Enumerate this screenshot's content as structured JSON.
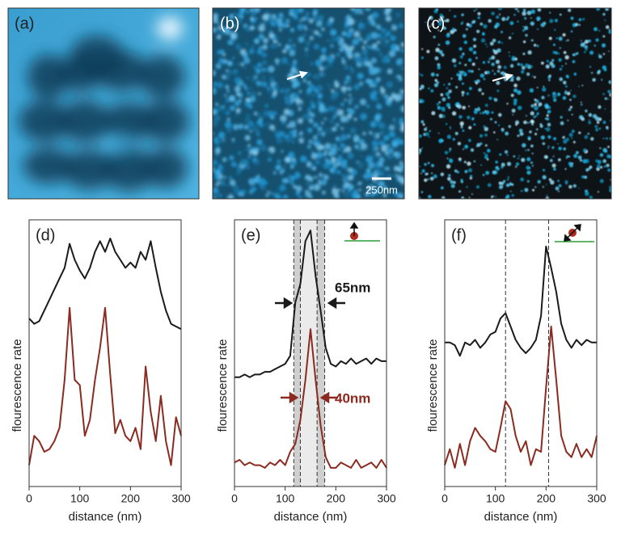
{
  "images": [
    {
      "label": "(a)"
    },
    {
      "label": "(b)",
      "scale_bar": "250nm"
    },
    {
      "label": "(c)"
    }
  ],
  "chart_data": [
    {
      "type": "line",
      "label": "(d)",
      "xlabel": "distance (nm)",
      "ylabel": "flourescence rate",
      "xlim": [
        0,
        300
      ],
      "xticks": [
        0,
        100,
        200,
        300
      ],
      "ylim": [
        0,
        100
      ],
      "x": [
        0,
        10,
        20,
        30,
        40,
        50,
        60,
        70,
        80,
        90,
        100,
        110,
        120,
        130,
        140,
        150,
        160,
        170,
        180,
        190,
        200,
        210,
        220,
        230,
        240,
        250,
        260,
        270,
        280,
        290,
        300
      ],
      "series": [
        {
          "color": "#1a1a1a",
          "values": [
            63,
            61,
            62,
            66,
            70,
            74,
            78,
            82,
            91,
            85,
            81,
            78,
            82,
            88,
            92,
            88,
            93,
            88,
            85,
            82,
            84,
            82,
            88,
            85,
            92,
            82,
            73,
            66,
            61,
            60,
            59
          ]
        },
        {
          "color": "#8b2a20",
          "values": [
            8,
            19,
            17,
            13,
            14,
            17,
            22,
            40,
            67,
            40,
            38,
            19,
            25,
            40,
            52,
            67,
            42,
            20,
            25,
            19,
            17,
            22,
            14,
            45,
            28,
            17,
            34,
            17,
            8,
            26,
            19
          ]
        }
      ]
    },
    {
      "type": "line",
      "label": "(e)",
      "xlabel": "distance (nm)",
      "ylabel": "flourescence rate",
      "xlim": [
        0,
        300
      ],
      "xticks": [
        0,
        100,
        200,
        300
      ],
      "ylim": [
        0,
        100
      ],
      "x": [
        0,
        10,
        20,
        30,
        40,
        50,
        60,
        70,
        80,
        90,
        100,
        110,
        120,
        130,
        140,
        150,
        160,
        170,
        180,
        190,
        200,
        210,
        220,
        230,
        240,
        250,
        260,
        270,
        280,
        290,
        300
      ],
      "series": [
        {
          "color": "#1a1a1a",
          "values": [
            41,
            41,
            42,
            41,
            42,
            42,
            43,
            43,
            44,
            45,
            46,
            49,
            69,
            76,
            92,
            96,
            79,
            66,
            52,
            46,
            45,
            47,
            46,
            48,
            46,
            47,
            48,
            46,
            48,
            47,
            47
          ]
        },
        {
          "color": "#8b2a20",
          "values": [
            9,
            10,
            8,
            9,
            8,
            8,
            7,
            9,
            8,
            10,
            8,
            13,
            16,
            25,
            40,
            59,
            40,
            23,
            11,
            7,
            7,
            9,
            8,
            7,
            10,
            7,
            8,
            9,
            7,
            10,
            7
          ]
        }
      ],
      "vlines": [
        117,
        130,
        163,
        178
      ],
      "annotations": [
        {
          "text": "65nm",
          "color": "#1a1a1a"
        },
        {
          "text": "40nm",
          "color": "#8b2a20"
        }
      ]
    },
    {
      "type": "line",
      "label": "(f)",
      "xlabel": "distance (nm)",
      "ylabel": "flourescence rate",
      "xlim": [
        0,
        300
      ],
      "xticks": [
        0,
        100,
        200,
        300
      ],
      "ylim": [
        0,
        100
      ],
      "x": [
        0,
        10,
        20,
        30,
        40,
        50,
        60,
        70,
        80,
        90,
        100,
        110,
        120,
        130,
        140,
        150,
        160,
        170,
        180,
        190,
        200,
        210,
        220,
        230,
        240,
        250,
        260,
        270,
        280,
        290,
        300
      ],
      "series": [
        {
          "color": "#1a1a1a",
          "values": [
            54,
            54,
            53,
            49,
            54,
            53,
            55,
            52,
            54,
            57,
            58,
            63,
            65,
            60,
            55,
            52,
            50,
            52,
            55,
            64,
            90,
            82,
            73,
            61,
            55,
            52,
            55,
            53,
            55,
            54,
            54
          ]
        },
        {
          "color": "#8b2a20",
          "values": [
            8,
            14,
            7,
            16,
            8,
            17,
            22,
            19,
            17,
            14,
            13,
            22,
            32,
            29,
            19,
            13,
            17,
            8,
            14,
            13,
            37,
            60,
            40,
            19,
            13,
            11,
            16,
            11,
            14,
            11,
            19
          ]
        }
      ],
      "vlines": [
        120,
        205
      ]
    }
  ]
}
